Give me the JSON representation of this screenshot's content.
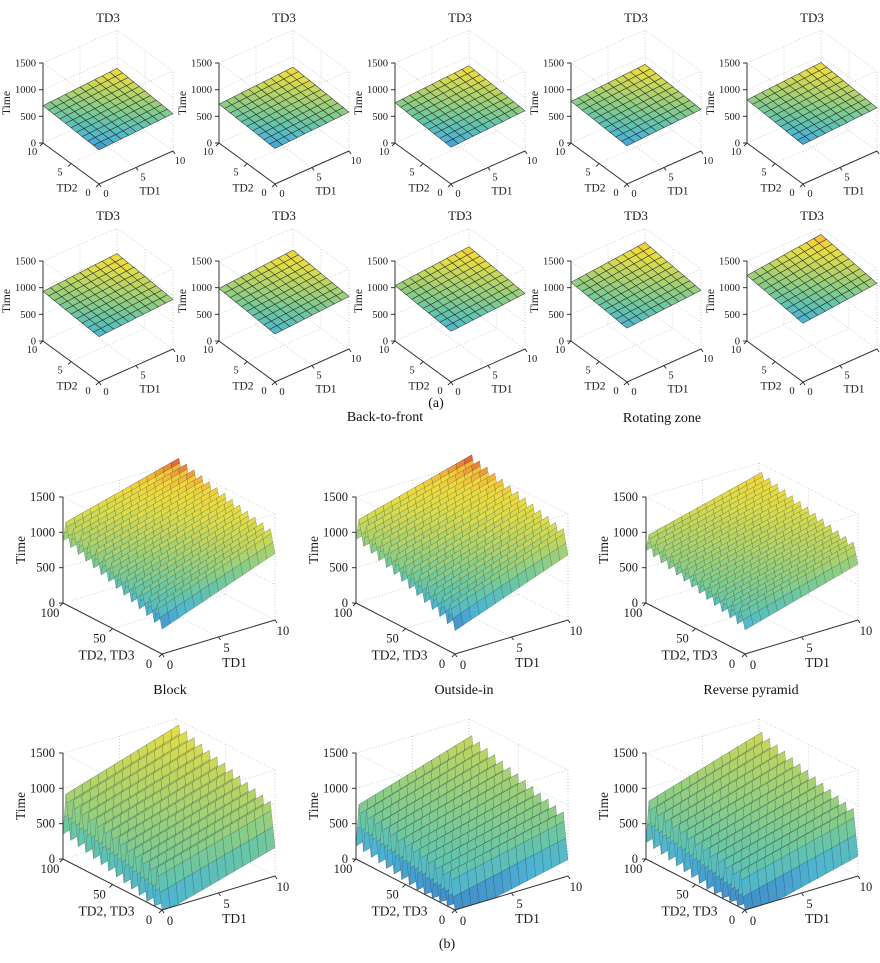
{
  "labels": {
    "panel_a": "(a)",
    "panel_b": "(b)",
    "back_to_front": "Back-to-front",
    "rotating_zone": "Rotating zone"
  },
  "chart_data": [
    {
      "id": "a1",
      "panel": "a",
      "type": "surface",
      "title": "TD3",
      "xlabel": "TD1",
      "ylabel": "TD2",
      "zlabel": "Time",
      "x_range": [
        0,
        10
      ],
      "y_range": [
        0,
        10
      ],
      "z_range": [
        0,
        1500
      ],
      "x_ticks": [
        0,
        5,
        10
      ],
      "y_ticks": [
        0,
        5,
        10
      ],
      "z_ticks": [
        0,
        500,
        1000,
        1500
      ],
      "grid": true,
      "surface": {
        "front": 640,
        "left": 700,
        "right": 700,
        "back": 780,
        "teeth": 0,
        "tooth_depth": 0,
        "mesh": [
          10,
          10
        ]
      },
      "color_domain": [
        618,
        810
      ]
    },
    {
      "id": "a2",
      "panel": "a",
      "type": "surface",
      "title": "TD3",
      "xlabel": "TD1",
      "ylabel": "TD2",
      "zlabel": "Time",
      "x_range": [
        0,
        10
      ],
      "y_range": [
        0,
        10
      ],
      "z_range": [
        0,
        1500
      ],
      "x_ticks": [
        0,
        5,
        10
      ],
      "y_ticks": [
        0,
        5,
        10
      ],
      "z_ticks": [
        0,
        500,
        1000,
        1500
      ],
      "grid": true,
      "surface": {
        "front": 665,
        "left": 730,
        "right": 730,
        "back": 805,
        "teeth": 0,
        "tooth_depth": 0,
        "mesh": [
          10,
          10
        ]
      },
      "color_domain": [
        640,
        832
      ]
    },
    {
      "id": "a3",
      "panel": "a",
      "type": "surface",
      "title": "TD3",
      "xlabel": "TD1",
      "ylabel": "TD2",
      "zlabel": "Time",
      "x_range": [
        0,
        10
      ],
      "y_range": [
        0,
        10
      ],
      "z_range": [
        0,
        1500
      ],
      "x_ticks": [
        0,
        5,
        10
      ],
      "y_ticks": [
        0,
        5,
        10
      ],
      "z_ticks": [
        0,
        500,
        1000,
        1500
      ],
      "grid": true,
      "surface": {
        "front": 690,
        "left": 755,
        "right": 755,
        "back": 830,
        "teeth": 0,
        "tooth_depth": 0,
        "mesh": [
          10,
          10
        ]
      },
      "color_domain": [
        665,
        858
      ]
    },
    {
      "id": "a4",
      "panel": "a",
      "type": "surface",
      "title": "TD3",
      "xlabel": "TD1",
      "ylabel": "TD2",
      "zlabel": "Time",
      "x_range": [
        0,
        10
      ],
      "y_range": [
        0,
        10
      ],
      "z_range": [
        0,
        1500
      ],
      "x_ticks": [
        0,
        5,
        10
      ],
      "y_ticks": [
        0,
        5,
        10
      ],
      "z_ticks": [
        0,
        500,
        1000,
        1500
      ],
      "grid": true,
      "surface": {
        "front": 715,
        "left": 780,
        "right": 780,
        "back": 855,
        "teeth": 0,
        "tooth_depth": 0,
        "mesh": [
          10,
          10
        ]
      },
      "color_domain": [
        688,
        885
      ]
    },
    {
      "id": "a5",
      "panel": "a",
      "type": "surface",
      "title": "TD3",
      "xlabel": "TD1",
      "ylabel": "TD2",
      "zlabel": "Time",
      "x_range": [
        0,
        10
      ],
      "y_range": [
        0,
        10
      ],
      "z_range": [
        0,
        1500
      ],
      "x_ticks": [
        0,
        5,
        10
      ],
      "y_ticks": [
        0,
        5,
        10
      ],
      "z_ticks": [
        0,
        500,
        1000,
        1500
      ],
      "grid": true,
      "surface": {
        "front": 740,
        "left": 810,
        "right": 810,
        "back": 890,
        "teeth": 0,
        "tooth_depth": 0,
        "mesh": [
          10,
          10
        ]
      },
      "color_domain": [
        712,
        918
      ]
    },
    {
      "id": "a6",
      "panel": "a",
      "type": "surface",
      "title": "TD3",
      "xlabel": "TD1",
      "ylabel": "TD2",
      "zlabel": "Time",
      "x_range": [
        0,
        10
      ],
      "y_range": [
        0,
        10
      ],
      "z_range": [
        0,
        1500
      ],
      "x_ticks": [
        0,
        5,
        10
      ],
      "y_ticks": [
        0,
        5,
        10
      ],
      "z_ticks": [
        0,
        500,
        1000,
        1500
      ],
      "grid": true,
      "surface": {
        "front": 850,
        "left": 930,
        "right": 930,
        "back": 1020,
        "teeth": 0,
        "tooth_depth": 0,
        "mesh": [
          10,
          10
        ]
      },
      "color_domain": [
        800,
        1048
      ]
    },
    {
      "id": "a7",
      "panel": "a",
      "type": "surface",
      "title": "TD3",
      "xlabel": "TD1",
      "ylabel": "TD2",
      "zlabel": "Time",
      "x_range": [
        0,
        10
      ],
      "y_range": [
        0,
        10
      ],
      "z_range": [
        0,
        1500
      ],
      "x_ticks": [
        0,
        5,
        10
      ],
      "y_ticks": [
        0,
        5,
        10
      ],
      "z_ticks": [
        0,
        500,
        1000,
        1500
      ],
      "grid": true,
      "surface": {
        "front": 900,
        "left": 985,
        "right": 985,
        "back": 1085,
        "teeth": 0,
        "tooth_depth": 0,
        "mesh": [
          10,
          10
        ]
      },
      "color_domain": [
        848,
        1112
      ]
    },
    {
      "id": "a8",
      "panel": "a",
      "type": "surface",
      "title": "TD3",
      "xlabel": "TD1",
      "ylabel": "TD2",
      "zlabel": "Time",
      "x_range": [
        0,
        10
      ],
      "y_range": [
        0,
        10
      ],
      "z_range": [
        0,
        1500
      ],
      "x_ticks": [
        0,
        5,
        10
      ],
      "y_ticks": [
        0,
        5,
        10
      ],
      "z_ticks": [
        0,
        500,
        1000,
        1500
      ],
      "grid": true,
      "surface": {
        "front": 950,
        "left": 1040,
        "right": 1040,
        "back": 1150,
        "teeth": 0,
        "tooth_depth": 0,
        "mesh": [
          10,
          10
        ]
      },
      "color_domain": [
        895,
        1175
      ]
    },
    {
      "id": "a9",
      "panel": "a",
      "type": "surface",
      "title": "TD3",
      "xlabel": "TD1",
      "ylabel": "TD2",
      "zlabel": "Time",
      "x_range": [
        0,
        10
      ],
      "y_range": [
        0,
        10
      ],
      "z_range": [
        0,
        1500
      ],
      "x_ticks": [
        0,
        5,
        10
      ],
      "y_ticks": [
        0,
        5,
        10
      ],
      "z_ticks": [
        0,
        500,
        1000,
        1500
      ],
      "grid": true,
      "surface": {
        "front": 1010,
        "left": 1100,
        "right": 1100,
        "back": 1230,
        "teeth": 0,
        "tooth_depth": 0,
        "mesh": [
          10,
          10
        ]
      },
      "color_domain": [
        948,
        1256
      ]
    },
    {
      "id": "a10",
      "panel": "a",
      "type": "surface",
      "title": "TD3",
      "xlabel": "TD1",
      "ylabel": "TD2",
      "zlabel": "Time",
      "x_range": [
        0,
        10
      ],
      "y_range": [
        0,
        10
      ],
      "z_range": [
        0,
        1500
      ],
      "x_ticks": [
        0,
        5,
        10
      ],
      "y_ticks": [
        0,
        5,
        10
      ],
      "z_ticks": [
        0,
        500,
        1000,
        1500
      ],
      "grid": true,
      "surface": {
        "front": 1100,
        "left": 1230,
        "right": 1230,
        "back": 1380,
        "teeth": 0,
        "tooth_depth": 0,
        "mesh": [
          10,
          10
        ]
      },
      "color_domain": [
        1040,
        1400
      ]
    },
    {
      "id": "b1",
      "panel": "b",
      "type": "surface",
      "group_label": "Block",
      "xlabel": "TD1",
      "ylabel": "TD2, TD3",
      "zlabel": "Time",
      "x_range": [
        0,
        10
      ],
      "y_range": [
        0,
        100
      ],
      "z_range": [
        0,
        1500
      ],
      "x_ticks": [
        0,
        5,
        10
      ],
      "y_ticks": [
        0,
        50,
        100
      ],
      "z_ticks": [
        0,
        500,
        1000,
        1500
      ],
      "grid": true,
      "surface": {
        "front": 650,
        "left": 1180,
        "right": 1240,
        "back": 1600,
        "teeth": 13,
        "tooth_depth": 300,
        "mesh": [
          14,
          65
        ]
      },
      "color_domain": [
        250,
        1560
      ]
    },
    {
      "id": "b2",
      "panel": "b",
      "type": "surface",
      "group_label": "Outside-in",
      "xlabel": "TD1",
      "ylabel": "TD2, TD3",
      "zlabel": "Time",
      "x_range": [
        0,
        10
      ],
      "y_range": [
        0,
        100
      ],
      "z_range": [
        0,
        1500
      ],
      "x_ticks": [
        0,
        5,
        10
      ],
      "y_ticks": [
        0,
        50,
        100
      ],
      "z_ticks": [
        0,
        500,
        1000,
        1500
      ],
      "grid": true,
      "surface": {
        "front": 650,
        "left": 1220,
        "right": 1240,
        "back": 1650,
        "teeth": 13,
        "tooth_depth": 320,
        "mesh": [
          14,
          65
        ]
      },
      "color_domain": [
        250,
        1600
      ]
    },
    {
      "id": "b3",
      "panel": "b",
      "type": "surface",
      "group_label": "Reverse pyramid",
      "xlabel": "TD1",
      "ylabel": "TD2, TD3",
      "zlabel": "Time",
      "x_range": [
        0,
        10
      ],
      "y_range": [
        0,
        100
      ],
      "z_range": [
        0,
        1500
      ],
      "x_ticks": [
        0,
        5,
        10
      ],
      "y_ticks": [
        0,
        50,
        100
      ],
      "z_ticks": [
        0,
        500,
        1000,
        1500
      ],
      "grid": true,
      "surface": {
        "front": 600,
        "left": 1000,
        "right": 1050,
        "back": 1400,
        "teeth": 13,
        "tooth_depth": 260,
        "mesh": [
          14,
          65
        ]
      },
      "color_domain": [
        50,
        1560
      ]
    },
    {
      "id": "b4",
      "panel": "b",
      "type": "surface",
      "xlabel": "TD1",
      "ylabel": "TD2, TD3",
      "zlabel": "Time",
      "x_range": [
        0,
        10
      ],
      "y_range": [
        0,
        100
      ],
      "z_range": [
        0,
        1500
      ],
      "x_ticks": [
        0,
        5,
        10
      ],
      "y_ticks": [
        0,
        50,
        100
      ],
      "z_ticks": [
        0,
        500,
        1000,
        1500
      ],
      "grid": true,
      "surface": {
        "front": 550,
        "left": 950,
        "right": 1000,
        "back": 1450,
        "teeth": 13,
        "tooth_depth": 600,
        "mesh": [
          14,
          65
        ]
      },
      "color_domain": [
        -350,
        1900
      ]
    },
    {
      "id": "b5",
      "panel": "b",
      "type": "surface",
      "xlabel": "TD1",
      "ylabel": "TD2, TD3",
      "zlabel": "Time",
      "x_range": [
        0,
        10
      ],
      "y_range": [
        0,
        100
      ],
      "z_range": [
        0,
        1500
      ],
      "x_ticks": [
        0,
        5,
        10
      ],
      "y_ticks": [
        0,
        50,
        100
      ],
      "z_ticks": [
        0,
        500,
        1000,
        1500
      ],
      "grid": true,
      "surface": {
        "front": 500,
        "left": 800,
        "right": 850,
        "back": 1300,
        "teeth": 13,
        "tooth_depth": 620,
        "mesh": [
          14,
          65
        ]
      },
      "color_domain": [
        -150,
        1950
      ]
    },
    {
      "id": "b6",
      "panel": "b",
      "type": "surface",
      "xlabel": "TD1",
      "ylabel": "TD2, TD3",
      "zlabel": "Time",
      "x_range": [
        0,
        10
      ],
      "y_range": [
        0,
        100
      ],
      "z_range": [
        0,
        1500
      ],
      "x_ticks": [
        0,
        5,
        10
      ],
      "y_ticks": [
        0,
        50,
        100
      ],
      "z_ticks": [
        0,
        500,
        1000,
        1500
      ],
      "grid": true,
      "surface": {
        "front": 500,
        "left": 850,
        "right": 900,
        "back": 1350,
        "teeth": 13,
        "tooth_depth": 620,
        "mesh": [
          14,
          65
        ]
      },
      "color_domain": [
        -150,
        1950
      ]
    }
  ]
}
